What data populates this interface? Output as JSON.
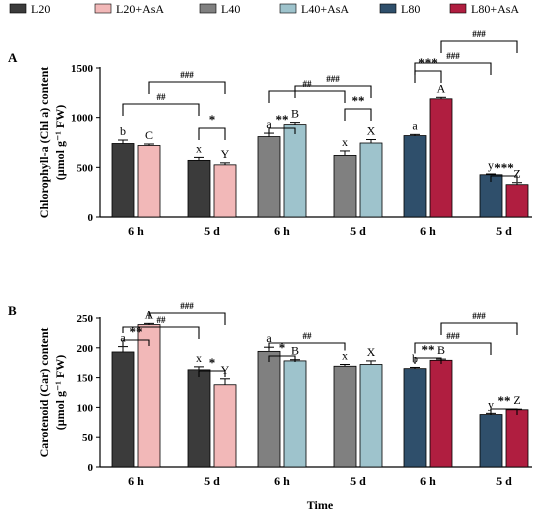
{
  "colors": {
    "L20": "#3b3b3b",
    "L20+AsA": "#f2b8b8",
    "L40": "#808080",
    "L40+AsA": "#9ec3cc",
    "L80": "#2f4f6b",
    "L80+AsA": "#b01e40"
  },
  "legend": [
    "L20",
    "L20+AsA",
    "L40",
    "L40+AsA",
    "L80",
    "L80+AsA"
  ],
  "xlabel": "Time",
  "chart_data": [
    {
      "type": "bar",
      "panel_label": "A",
      "ylabel_line1": "Chlorophyll-a (Chl a) content",
      "ylabel_line2": "(μmol g⁻¹ FW)",
      "ylim": [
        0,
        1500
      ],
      "yticks": [
        "0",
        "500",
        "1000",
        "1500"
      ],
      "categories": [
        "6 h",
        "5 d",
        "6 h",
        "5 d",
        "6 h",
        "5 d"
      ],
      "series": [
        {
          "name": "L20",
          "values": [
            740,
            570,
            null,
            null,
            null,
            null
          ],
          "errors": [
            35,
            30,
            null,
            null,
            null,
            null
          ],
          "letters": [
            "b",
            "x",
            null,
            null,
            null,
            null
          ]
        },
        {
          "name": "L20+AsA",
          "values": [
            720,
            525,
            null,
            null,
            null,
            null
          ],
          "errors": [
            15,
            20,
            null,
            null,
            null,
            null
          ],
          "letters": [
            "C",
            "Y",
            null,
            null,
            null,
            null
          ]
        },
        {
          "name": "L40",
          "values": [
            null,
            null,
            810,
            620,
            null,
            null
          ],
          "errors": [
            null,
            null,
            35,
            45,
            null,
            null
          ],
          "letters": [
            null,
            null,
            "a",
            "x",
            null,
            null
          ]
        },
        {
          "name": "L40+AsA",
          "values": [
            null,
            null,
            930,
            745,
            null,
            null
          ],
          "errors": [
            null,
            null,
            20,
            35,
            null,
            null
          ],
          "letters": [
            null,
            null,
            "B",
            "X",
            null,
            null
          ]
        },
        {
          "name": "L80",
          "values": [
            null,
            null,
            null,
            null,
            820,
            425
          ],
          "errors": [
            null,
            null,
            null,
            null,
            12,
            8
          ],
          "letters": [
            null,
            null,
            null,
            null,
            "a",
            "y"
          ]
        },
        {
          "name": "L80+AsA",
          "values": [
            null,
            null,
            null,
            null,
            1190,
            325
          ],
          "errors": [
            null,
            null,
            null,
            null,
            15,
            20
          ],
          "letters": [
            null,
            null,
            null,
            null,
            "A",
            "Z"
          ]
        }
      ],
      "annotations": [
        {
          "text": "*",
          "from": [
            1,
            0
          ],
          "to": [
            1,
            1
          ]
        },
        {
          "text": "##",
          "from": [
            0,
            0
          ],
          "to": [
            1,
            0
          ]
        },
        {
          "text": "###",
          "from": [
            0,
            1
          ],
          "to": [
            1,
            1
          ]
        },
        {
          "text": "**",
          "from": [
            2,
            0
          ],
          "to": [
            2,
            1
          ]
        },
        {
          "text": "**",
          "from": [
            3,
            0
          ],
          "to": [
            3,
            1
          ]
        },
        {
          "text": "##",
          "from": [
            2,
            0
          ],
          "to": [
            3,
            0
          ]
        },
        {
          "text": "###",
          "from": [
            2,
            1
          ],
          "to": [
            3,
            1
          ]
        },
        {
          "text": "***",
          "from": [
            4,
            0
          ],
          "to": [
            4,
            1
          ]
        },
        {
          "text": "###",
          "from": [
            4,
            0
          ],
          "to": [
            5,
            0
          ]
        },
        {
          "text": "###",
          "from": [
            4,
            1
          ],
          "to": [
            5,
            1
          ]
        },
        {
          "text": "***",
          "from": [
            5,
            0
          ],
          "to": [
            5,
            1
          ]
        }
      ]
    },
    {
      "type": "bar",
      "panel_label": "B",
      "ylabel_line1": "Carotenoid (Car) content",
      "ylabel_line2": "(μmol g⁻¹ FW)",
      "ylim": [
        0,
        250
      ],
      "yticks": [
        "0",
        "50",
        "100",
        "150",
        "200",
        "250"
      ],
      "categories": [
        "6 h",
        "5 d",
        "6 h",
        "5 d",
        "6 h",
        "5 d"
      ],
      "series": [
        {
          "name": "L20",
          "values": [
            193,
            163,
            null,
            null,
            null,
            null
          ],
          "errors": [
            9,
            5,
            null,
            null,
            null,
            null
          ],
          "letters": [
            "a",
            "x",
            null,
            null,
            null,
            null
          ]
        },
        {
          "name": "L20+AsA",
          "values": [
            239,
            138,
            null,
            null,
            null,
            null
          ],
          "errors": [
            2,
            10,
            null,
            null,
            null,
            null
          ],
          "letters": [
            "A",
            "Y",
            null,
            null,
            null,
            null
          ]
        },
        {
          "name": "L40",
          "values": [
            null,
            null,
            194,
            169,
            null,
            null
          ],
          "errors": [
            null,
            null,
            7,
            3,
            null,
            null
          ],
          "letters": [
            null,
            null,
            "a",
            "x",
            null,
            null
          ]
        },
        {
          "name": "L40+AsA",
          "values": [
            null,
            null,
            178,
            172,
            null,
            null
          ],
          "errors": [
            null,
            null,
            2,
            6,
            null,
            null
          ],
          "letters": [
            null,
            null,
            "B",
            "X",
            null,
            null
          ]
        },
        {
          "name": "L80",
          "values": [
            null,
            null,
            null,
            null,
            165,
            88
          ],
          "errors": [
            null,
            null,
            null,
            null,
            2,
            2
          ],
          "letters": [
            null,
            null,
            null,
            null,
            "b",
            "y"
          ]
        },
        {
          "name": "L80+AsA",
          "values": [
            null,
            null,
            null,
            null,
            179,
            96
          ],
          "errors": [
            null,
            null,
            null,
            null,
            2,
            1
          ],
          "letters": [
            null,
            null,
            null,
            null,
            "B",
            "Z"
          ]
        }
      ],
      "annotations": [
        {
          "text": "**",
          "from": [
            0,
            0
          ],
          "to": [
            0,
            1
          ]
        },
        {
          "text": "##",
          "from": [
            0,
            0
          ],
          "to": [
            1,
            0
          ]
        },
        {
          "text": "###",
          "from": [
            0,
            1
          ],
          "to": [
            1,
            1
          ]
        },
        {
          "text": "*",
          "from": [
            1,
            0
          ],
          "to": [
            1,
            1
          ]
        },
        {
          "text": "*",
          "from": [
            2,
            0
          ],
          "to": [
            2,
            1
          ]
        },
        {
          "text": "##",
          "from": [
            2,
            0
          ],
          "to": [
            3,
            0
          ]
        },
        {
          "text": "**",
          "from": [
            4,
            0
          ],
          "to": [
            4,
            1
          ]
        },
        {
          "text": "###",
          "from": [
            4,
            0
          ],
          "to": [
            5,
            0
          ]
        },
        {
          "text": "###",
          "from": [
            4,
            1
          ],
          "to": [
            5,
            1
          ]
        },
        {
          "text": "**",
          "from": [
            5,
            0
          ],
          "to": [
            5,
            1
          ]
        }
      ]
    }
  ]
}
